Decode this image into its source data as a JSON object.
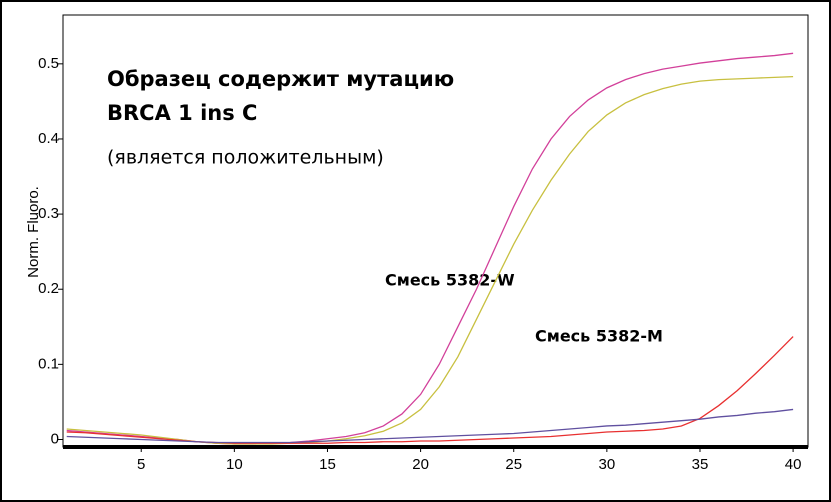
{
  "chart_data": {
    "type": "line",
    "y_label": "Norm. Fluoro.",
    "annotations": [
      "Образец содержит мутацию",
      "BRCA 1 ins C",
      "(является положительным)",
      "Смесь 5382-W",
      "Смесь 5382-M"
    ],
    "x": [
      1,
      2,
      3,
      4,
      5,
      6,
      7,
      8,
      9,
      10,
      11,
      12,
      13,
      14,
      15,
      16,
      17,
      18,
      19,
      20,
      21,
      22,
      23,
      24,
      25,
      26,
      27,
      28,
      29,
      30,
      31,
      32,
      33,
      34,
      35,
      36,
      37,
      38,
      39,
      40
    ],
    "series": [
      {
        "color": "#d2409a",
        "values": [
          0.012,
          0.01,
          0.008,
          0.006,
          0.004,
          0.002,
          0,
          -0.003,
          -0.005,
          -0.006,
          -0.006,
          -0.005,
          -0.004,
          -0.002,
          0.001,
          0.004,
          0.009,
          0.018,
          0.034,
          0.06,
          0.1,
          0.15,
          0.2,
          0.255,
          0.31,
          0.36,
          0.4,
          0.43,
          0.452,
          0.468,
          0.479,
          0.487,
          0.493,
          0.497,
          0.501,
          0.504,
          0.507,
          0.509,
          0.511,
          0.514
        ]
      },
      {
        "color": "#c8c040",
        "values": [
          0.014,
          0.012,
          0.01,
          0.008,
          0.006,
          0.003,
          0,
          -0.003,
          -0.005,
          -0.006,
          -0.006,
          -0.006,
          -0.005,
          -0.004,
          -0.002,
          0.001,
          0.005,
          0.011,
          0.022,
          0.04,
          0.07,
          0.11,
          0.16,
          0.21,
          0.26,
          0.305,
          0.345,
          0.38,
          0.41,
          0.432,
          0.448,
          0.459,
          0.467,
          0.473,
          0.477,
          0.479,
          0.48,
          0.481,
          0.482,
          0.483
        ]
      },
      {
        "color": "#e83030",
        "values": [
          0.01,
          0.009,
          0.007,
          0.005,
          0.003,
          0.001,
          -0.001,
          -0.003,
          -0.004,
          -0.005,
          -0.005,
          -0.005,
          -0.005,
          -0.005,
          -0.005,
          -0.004,
          -0.004,
          -0.003,
          -0.003,
          -0.002,
          -0.002,
          -0.001,
          0,
          0.001,
          0.002,
          0.003,
          0.004,
          0.006,
          0.008,
          0.01,
          0.011,
          0.012,
          0.014,
          0.018,
          0.028,
          0.045,
          0.065,
          0.088,
          0.112,
          0.137
        ]
      },
      {
        "color": "#6050a0",
        "values": [
          0.004,
          0.003,
          0.002,
          0.001,
          0,
          -0.001,
          -0.002,
          -0.003,
          -0.004,
          -0.004,
          -0.004,
          -0.004,
          -0.004,
          -0.003,
          -0.002,
          -0.001,
          0,
          0.001,
          0.002,
          0.003,
          0.004,
          0.005,
          0.006,
          0.007,
          0.008,
          0.01,
          0.012,
          0.014,
          0.016,
          0.018,
          0.019,
          0.021,
          0.023,
          0.025,
          0.027,
          0.03,
          0.032,
          0.035,
          0.037,
          0.04
        ]
      }
    ],
    "xlim": [
      0.8,
      40.8
    ],
    "ylim": [
      -0.01,
      0.565
    ],
    "xticks": [
      5,
      10,
      15,
      20,
      25,
      30,
      35,
      40
    ],
    "yticks": [
      0,
      0.1,
      0.2,
      0.3,
      0.4,
      0.5
    ]
  }
}
